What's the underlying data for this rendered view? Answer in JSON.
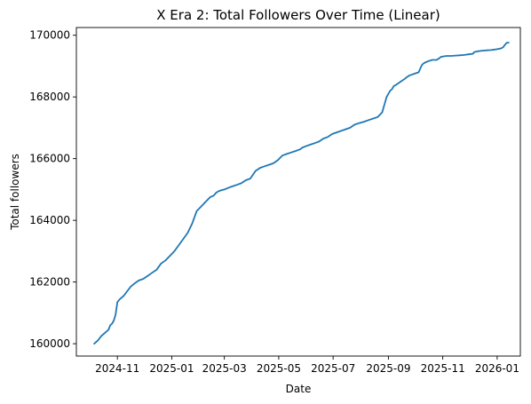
{
  "chart_data": {
    "type": "line",
    "title": "X Era 2: Total Followers Over Time (Linear)",
    "xlabel": "Date",
    "ylabel": "Total followers",
    "x_ticks": [
      "2024-11",
      "2025-01",
      "2025-03",
      "2025-05",
      "2025-07",
      "2025-09",
      "2025-11",
      "2026-01"
    ],
    "x_tick_dates": [
      "2024-11-01",
      "2025-01-01",
      "2025-03-01",
      "2025-05-01",
      "2025-07-01",
      "2025-09-01",
      "2025-11-01",
      "2026-01-01"
    ],
    "y_ticks": [
      160000,
      162000,
      164000,
      166000,
      168000,
      170000
    ],
    "xlim": [
      "2024-09-16",
      "2026-01-27"
    ],
    "ylim": [
      159600,
      170250
    ],
    "grid": false,
    "series": [
      {
        "color": "#1f77b4",
        "x": [
          "2024-10-06",
          "2024-10-10",
          "2024-10-14",
          "2024-10-18",
          "2024-10-22",
          "2024-10-24",
          "2024-10-26",
          "2024-10-28",
          "2024-10-30",
          "2024-11-01",
          "2024-11-04",
          "2024-11-08",
          "2024-11-12",
          "2024-11-16",
          "2024-11-20",
          "2024-11-25",
          "2024-11-30",
          "2024-12-05",
          "2024-12-10",
          "2024-12-15",
          "2024-12-20",
          "2024-12-25",
          "2024-12-30",
          "2025-01-04",
          "2025-01-09",
          "2025-01-14",
          "2025-01-19",
          "2025-01-24",
          "2025-01-29",
          "2025-02-03",
          "2025-02-08",
          "2025-02-13",
          "2025-02-17",
          "2025-02-20",
          "2025-02-23",
          "2025-02-26",
          "2025-03-01",
          "2025-03-05",
          "2025-03-10",
          "2025-03-15",
          "2025-03-20",
          "2025-03-25",
          "2025-03-30",
          "2025-04-05",
          "2025-04-10",
          "2025-04-15",
          "2025-04-20",
          "2025-04-25",
          "2025-04-30",
          "2025-05-05",
          "2025-05-10",
          "2025-05-15",
          "2025-05-20",
          "2025-05-25",
          "2025-05-27",
          "2025-05-31",
          "2025-06-05",
          "2025-06-10",
          "2025-06-15",
          "2025-06-20",
          "2025-06-25",
          "2025-06-30",
          "2025-07-05",
          "2025-07-10",
          "2025-07-15",
          "2025-07-20",
          "2025-07-25",
          "2025-07-30",
          "2025-08-05",
          "2025-08-10",
          "2025-08-15",
          "2025-08-20",
          "2025-08-25",
          "2025-08-30",
          "2025-09-03",
          "2025-09-05",
          "2025-09-06",
          "2025-09-07",
          "2025-09-10",
          "2025-09-15",
          "2025-09-20",
          "2025-09-22",
          "2025-09-25",
          "2025-09-30",
          "2025-10-05",
          "2025-10-08",
          "2025-10-09",
          "2025-10-11",
          "2025-10-15",
          "2025-10-20",
          "2025-10-25",
          "2025-10-28",
          "2025-10-30",
          "2025-11-05",
          "2025-11-10",
          "2025-11-15",
          "2025-11-20",
          "2025-11-25",
          "2025-11-30",
          "2025-12-05",
          "2025-12-06",
          "2025-12-10",
          "2025-12-15",
          "2025-12-20",
          "2025-12-25",
          "2025-12-30",
          "2026-01-03",
          "2026-01-06",
          "2026-01-08",
          "2026-01-10",
          "2026-01-12",
          "2026-01-14"
        ],
        "y": [
          160000,
          160100,
          160250,
          160350,
          160450,
          160600,
          160650,
          160750,
          160950,
          161350,
          161450,
          161550,
          161700,
          161850,
          161950,
          162050,
          162100,
          162200,
          162300,
          162400,
          162600,
          162700,
          162850,
          163000,
          163200,
          163400,
          163600,
          163900,
          164300,
          164450,
          164600,
          164750,
          164800,
          164900,
          164950,
          164980,
          165000,
          165050,
          165100,
          165150,
          165200,
          165300,
          165350,
          165600,
          165700,
          165750,
          165800,
          165850,
          165950,
          166100,
          166150,
          166200,
          166250,
          166300,
          166350,
          166400,
          166450,
          166500,
          166550,
          166650,
          166700,
          166800,
          166850,
          166900,
          166950,
          167000,
          167100,
          167150,
          167200,
          167250,
          167300,
          167350,
          167500,
          168000,
          168200,
          168250,
          168300,
          168350,
          168400,
          168500,
          168600,
          168650,
          168700,
          168750,
          168800,
          169000,
          169050,
          169100,
          169150,
          169200,
          169200,
          169250,
          169300,
          169330,
          169330,
          169340,
          169350,
          169360,
          169380,
          169400,
          169450,
          169480,
          169500,
          169510,
          169520,
          169540,
          169560,
          169580,
          169620,
          169700,
          169760,
          169760
        ]
      }
    ]
  }
}
